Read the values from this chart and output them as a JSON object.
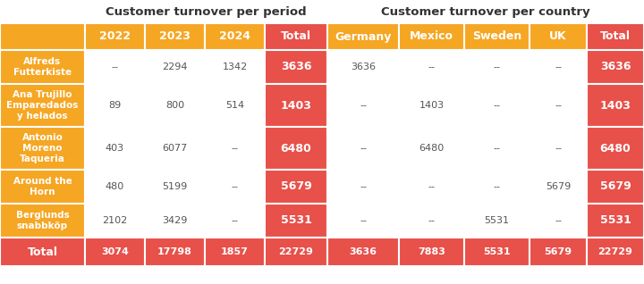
{
  "col_headers": [
    "2022",
    "2023",
    "2024",
    "Total",
    "Germany",
    "Mexico",
    "Sweden",
    "UK",
    "Total"
  ],
  "row_headers": [
    "Alfreds\nFutterkiste",
    "Ana Trujillo\nEmparedados\ny helados",
    "Antonio\nMoreno\nTaqueria",
    "Around the\nHorn",
    "Berglunds\nsnabbköp"
  ],
  "data": [
    [
      "--",
      "2294",
      "1342",
      "3636",
      "3636",
      "--",
      "--",
      "--",
      "3636"
    ],
    [
      "89",
      "800",
      "514",
      "1403",
      "--",
      "1403",
      "--",
      "--",
      "1403"
    ],
    [
      "403",
      "6077",
      "--",
      "6480",
      "--",
      "6480",
      "--",
      "--",
      "6480"
    ],
    [
      "480",
      "5199",
      "--",
      "5679",
      "--",
      "--",
      "--",
      "5679",
      "5679"
    ],
    [
      "2102",
      "3429",
      "--",
      "5531",
      "--",
      "--",
      "5531",
      "--",
      "5531"
    ]
  ],
  "total_row": [
    "3074",
    "17798",
    "1857",
    "22729",
    "3636",
    "7883",
    "5531",
    "5679",
    "22729"
  ],
  "orange": "#F5A623",
  "red": "#E8504A",
  "white": "#FFFFFF",
  "dark_text": "#555555",
  "group_title_color": "#333333",
  "period_title": "Customer turnover per period",
  "country_title": "Customer turnover per country",
  "total_label": "Total",
  "group_title_fontsize": 9.5,
  "col_header_fontsize": 9,
  "data_fontsize": 8,
  "row_header_fontsize": 7.5,
  "total_fontsize": 9
}
